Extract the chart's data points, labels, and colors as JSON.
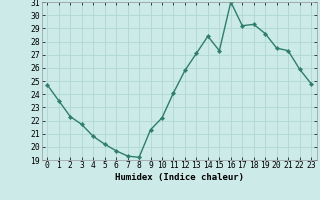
{
  "x": [
    0,
    1,
    2,
    3,
    4,
    5,
    6,
    7,
    8,
    9,
    10,
    11,
    12,
    13,
    14,
    15,
    16,
    17,
    18,
    19,
    20,
    21,
    22,
    23
  ],
  "y": [
    24.7,
    23.5,
    22.3,
    21.7,
    20.8,
    20.2,
    19.7,
    19.3,
    19.2,
    21.3,
    22.2,
    24.1,
    25.8,
    27.1,
    28.4,
    27.3,
    31.0,
    29.2,
    29.3,
    28.6,
    27.5,
    27.3,
    25.9,
    24.8
  ],
  "line_color": "#2e7d6e",
  "marker": "D",
  "marker_size": 2.2,
  "bg_color": "#cceae8",
  "grid_color": "#b0d8d4",
  "xlabel": "Humidex (Indice chaleur)",
  "ylim": [
    19,
    31
  ],
  "xlim": [
    -0.5,
    23.5
  ],
  "yticks": [
    19,
    20,
    21,
    22,
    23,
    24,
    25,
    26,
    27,
    28,
    29,
    30,
    31
  ],
  "xticks": [
    0,
    1,
    2,
    3,
    4,
    5,
    6,
    7,
    8,
    9,
    10,
    11,
    12,
    13,
    14,
    15,
    16,
    17,
    18,
    19,
    20,
    21,
    22,
    23
  ],
  "xtick_labels": [
    "0",
    "1",
    "2",
    "3",
    "4",
    "5",
    "6",
    "7",
    "8",
    "9",
    "10",
    "11",
    "12",
    "13",
    "14",
    "15",
    "16",
    "17",
    "18",
    "19",
    "20",
    "21",
    "22",
    "23"
  ],
  "xlabel_fontsize": 6.5,
  "tick_fontsize": 5.8,
  "line_width": 1.0
}
